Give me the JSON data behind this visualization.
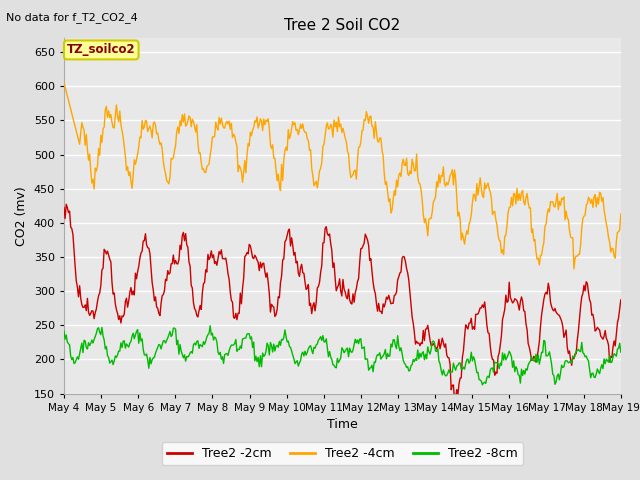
{
  "title": "Tree 2 Soil CO2",
  "subtitle": "No data for f_T2_CO2_4",
  "xlabel": "Time",
  "ylabel": "CO2 (mv)",
  "ylim": [
    150,
    670
  ],
  "yticks": [
    150,
    200,
    250,
    300,
    350,
    400,
    450,
    500,
    550,
    600,
    650
  ],
  "bg_color": "#e0e0e0",
  "plot_bg_color": "#e8e8e8",
  "grid_color": "#ffffff",
  "legend_label_2cm": "Tree2 -2cm",
  "legend_label_4cm": "Tree2 -4cm",
  "legend_label_8cm": "Tree2 -8cm",
  "color_2cm": "#cc0000",
  "color_4cm": "#ffa500",
  "color_8cm": "#00bb00",
  "annotation_text": "TZ_soilco2",
  "annotation_color": "#8b0000",
  "annotation_bg": "#ffff99",
  "annotation_edge": "#cccc00",
  "num_points": 500,
  "x_start": 4.0,
  "x_end": 19.0,
  "xtick_positions": [
    4,
    5,
    6,
    7,
    8,
    9,
    10,
    11,
    12,
    13,
    14,
    15,
    16,
    17,
    18,
    19
  ],
  "xtick_labels": [
    "May 4",
    "May 5",
    "May 6",
    "May 7",
    "May 8",
    "May 9",
    "May 10",
    "May 11",
    "May 12",
    "May 13",
    "May 14",
    "May 15",
    "May 16",
    "May 17",
    "May 18",
    "May 19"
  ]
}
